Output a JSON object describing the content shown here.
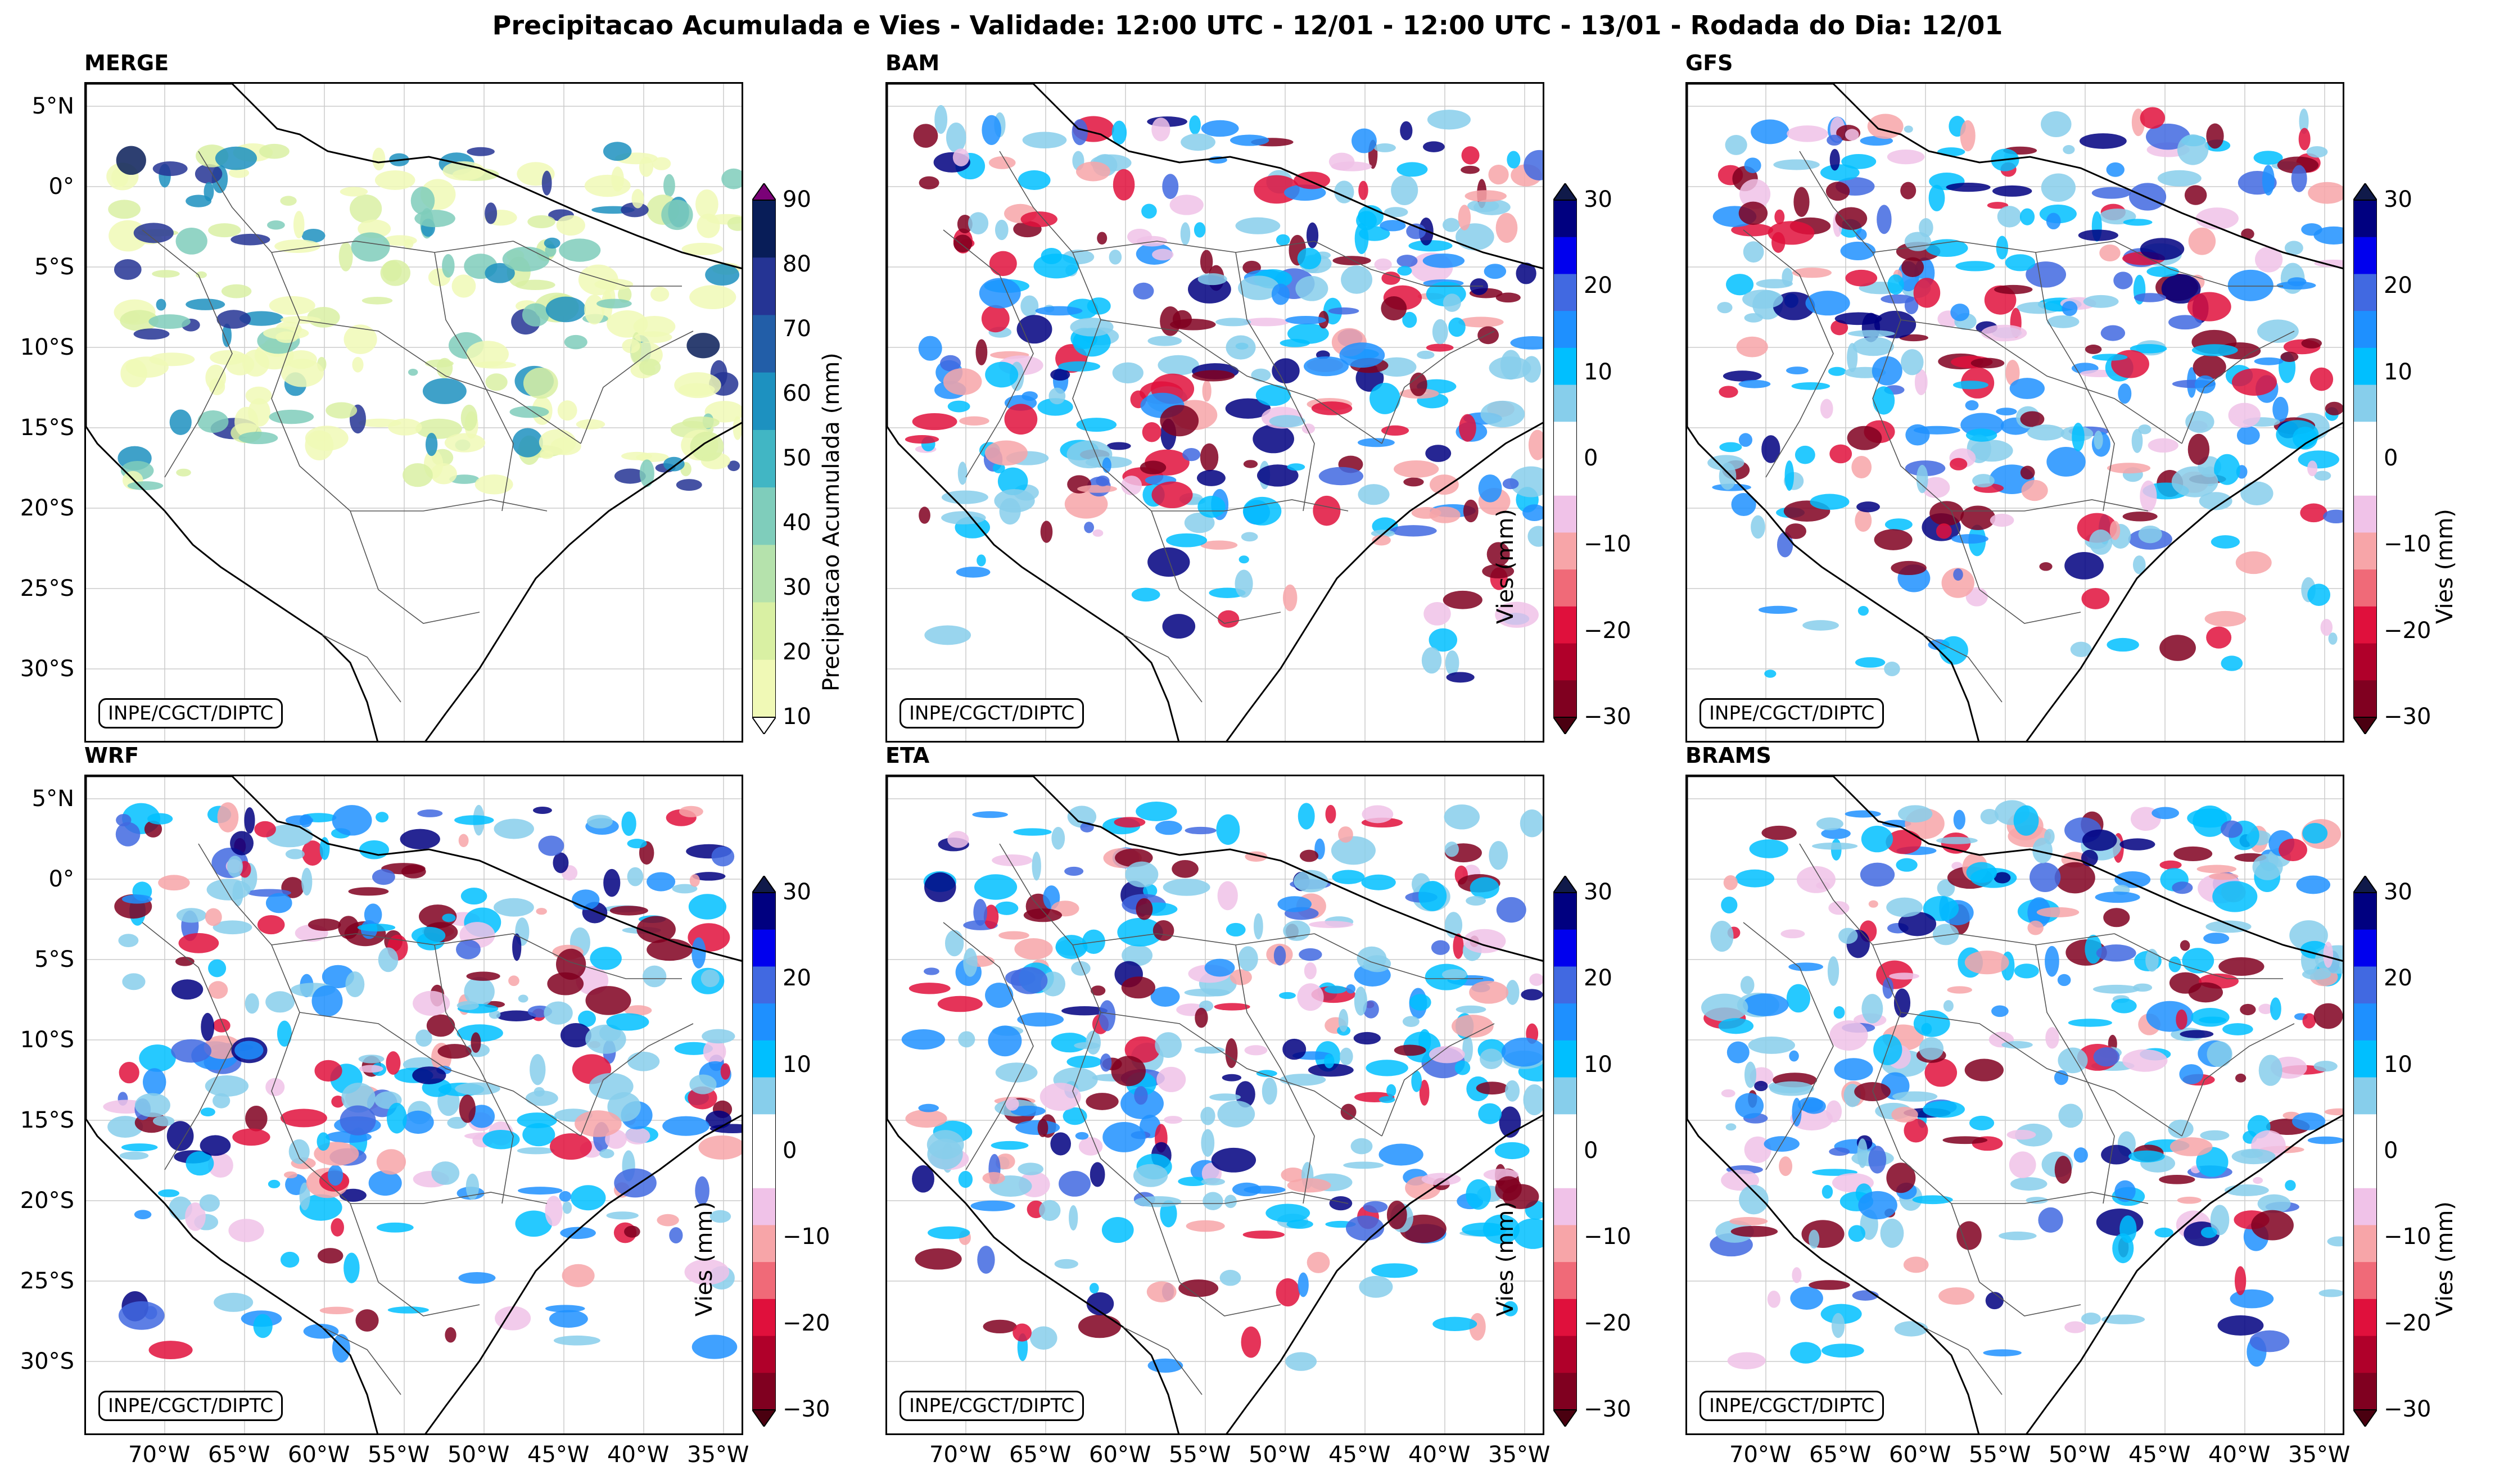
{
  "title": "Precipitacao Acumulada e Vies - Validade: 12:00 UTC - 12/01 - 12:00 UTC - 13/01 - Rodada do Dia: 12/01",
  "credit": "INPE/CGCT/DIPTC",
  "panels": [
    {
      "label": "MERGE",
      "kind": "precip"
    },
    {
      "label": "BAM",
      "kind": "bias"
    },
    {
      "label": "GFS",
      "kind": "bias"
    },
    {
      "label": "WRF",
      "kind": "bias"
    },
    {
      "label": "ETA",
      "kind": "bias"
    },
    {
      "label": "BRAMS",
      "kind": "bias"
    }
  ],
  "lat_ticks": [
    "5°N",
    "0°",
    "5°S",
    "10°S",
    "15°S",
    "20°S",
    "25°S",
    "30°S"
  ],
  "lon_ticks": [
    "70°W",
    "65°W",
    "60°W",
    "55°W",
    "50°W",
    "45°W",
    "40°W",
    "35°W"
  ],
  "colorbars": {
    "precip": {
      "label": "Precipitacao Acumulada (mm)",
      "ticks": [
        "90",
        "80",
        "70",
        "60",
        "50",
        "40",
        "30",
        "20",
        "10"
      ],
      "colors": [
        "#f0f9b6",
        "#d9f0a3",
        "#b5e2ac",
        "#7fcdbb",
        "#41b6c4",
        "#1d91c0",
        "#225ea8",
        "#253494",
        "#081d58"
      ],
      "under_color": "#ffffff",
      "over_color": "#7a0177"
    },
    "bias": {
      "label": "Vies (mm)",
      "ticks": [
        "30",
        "20",
        "10",
        "0",
        "−10",
        "−20",
        "−30"
      ],
      "colors": [
        "#800020",
        "#b0002a",
        "#e0103c",
        "#f06a78",
        "#f7a5a8",
        "#f0c2e8",
        "#ffffff",
        "#ffffff",
        "#87ceeb",
        "#00bfff",
        "#1e90ff",
        "#4169e1",
        "#0000ee",
        "#000080"
      ],
      "under_color": "#4a0010",
      "over_color": "#101a4a"
    }
  }
}
